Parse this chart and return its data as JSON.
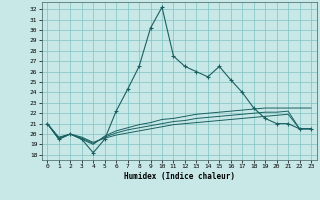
{
  "xlabel": "Humidex (Indice chaleur)",
  "bg_color": "#c8e8e8",
  "grid_color": "#80c0c0",
  "line_color": "#1a6060",
  "xlim": [
    -0.5,
    23.5
  ],
  "ylim": [
    17.5,
    32.7
  ],
  "xticks": [
    0,
    1,
    2,
    3,
    4,
    5,
    6,
    7,
    8,
    9,
    10,
    11,
    12,
    13,
    14,
    15,
    16,
    17,
    18,
    19,
    20,
    21,
    22,
    23
  ],
  "yticks": [
    18,
    19,
    20,
    21,
    22,
    23,
    24,
    25,
    26,
    27,
    28,
    29,
    30,
    31,
    32
  ],
  "series": [
    [
      21.0,
      19.5,
      20.0,
      19.5,
      18.2,
      19.5,
      22.2,
      24.3,
      26.5,
      30.2,
      32.2,
      27.5,
      26.5,
      26.0,
      25.5,
      26.5,
      25.2,
      24.0,
      22.5,
      21.5,
      21.0,
      21.0,
      20.5,
      20.5
    ],
    [
      21.0,
      19.5,
      20.0,
      19.5,
      19.0,
      19.8,
      20.3,
      20.6,
      20.9,
      21.1,
      21.4,
      21.5,
      21.7,
      21.9,
      22.0,
      22.1,
      22.2,
      22.3,
      22.4,
      22.5,
      22.5,
      22.5,
      22.5,
      22.5
    ],
    [
      21.0,
      19.7,
      20.0,
      19.7,
      19.2,
      19.6,
      19.9,
      20.1,
      20.3,
      20.5,
      20.7,
      20.9,
      21.0,
      21.1,
      21.2,
      21.3,
      21.4,
      21.5,
      21.6,
      21.7,
      21.8,
      21.9,
      20.5,
      20.5
    ],
    [
      21.0,
      19.6,
      20.0,
      19.6,
      19.1,
      19.7,
      20.1,
      20.4,
      20.6,
      20.8,
      21.0,
      21.2,
      21.3,
      21.5,
      21.6,
      21.7,
      21.8,
      21.9,
      22.0,
      22.1,
      22.1,
      22.2,
      20.5,
      20.5
    ]
  ]
}
